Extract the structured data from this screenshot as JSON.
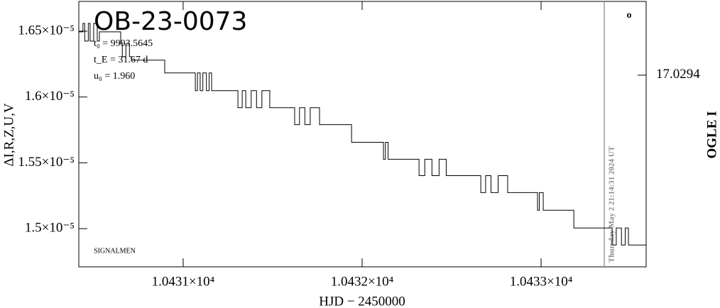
{
  "chart_data": {
    "type": "line",
    "title": "OB-23-0073",
    "annotations": [
      "t₀ = 9993.5645",
      "t_E = 31.67 d",
      "u₀ = 1.960",
      "SIGNALMEN",
      "Thursday May 2 21:14:31 2024 UT",
      "o"
    ],
    "xlabel": "HJD − 2450000",
    "ylabel": "ΔI,R,Z,U,V",
    "y2label": "OGLE I",
    "x": [
      10430.417,
      10430.44,
      10430.45,
      10430.47,
      10430.48,
      10430.5,
      10430.52,
      10430.532,
      10430.651,
      10430.66,
      10430.68,
      10430.7,
      10430.711,
      10430.897,
      10431.068,
      10431.08,
      10431.095,
      10431.11,
      10431.13,
      10431.145,
      10431.159,
      10431.306,
      10431.33,
      10431.35,
      10431.38,
      10431.41,
      10431.44,
      10431.484,
      10431.623,
      10431.65,
      10431.68,
      10431.71,
      10431.762,
      10431.941,
      10432.119,
      10432.13,
      10432.145,
      10432.159,
      10432.318,
      10432.35,
      10432.39,
      10432.43,
      10432.47,
      10432.496,
      10432.663,
      10432.69,
      10432.72,
      10432.76,
      10432.813,
      10432.98,
      10432.99,
      10433.012,
      10433.183,
      10433.397,
      10433.42,
      10433.449,
      10433.47,
      10433.488,
      10433.587
    ],
    "series": [
      {
        "name": "ΔI",
        "color": "#000000",
        "values": [
          1.6495e-05,
          1.6559e-05,
          1.6425e-05,
          1.6559e-05,
          1.6425e-05,
          1.6559e-05,
          1.6425e-05,
          1.6495e-05,
          1.6403e-05,
          1.6306e-05,
          1.6403e-05,
          1.6306e-05,
          1.628e-05,
          1.6183e-05,
          1.6048e-05,
          1.6183e-05,
          1.6048e-05,
          1.6183e-05,
          1.6048e-05,
          1.6183e-05,
          1.6048e-05,
          1.5919e-05,
          1.6048e-05,
          1.5919e-05,
          1.6048e-05,
          1.5919e-05,
          1.6048e-05,
          1.5919e-05,
          1.579e-05,
          1.5919e-05,
          1.579e-05,
          1.5919e-05,
          1.579e-05,
          1.5656e-05,
          1.5527e-05,
          1.5656e-05,
          1.5527e-05,
          1.5527e-05,
          1.5403e-05,
          1.5527e-05,
          1.5403e-05,
          1.5527e-05,
          1.5403e-05,
          1.5403e-05,
          1.5274e-05,
          1.5403e-05,
          1.5274e-05,
          1.5403e-05,
          1.5274e-05,
          1.514e-05,
          1.5274e-05,
          1.514e-05,
          1.5005e-05,
          1.4876e-05,
          1.5005e-05,
          1.4876e-05,
          1.5005e-05,
          1.4876e-05,
          1.4876e-05
        ]
      }
    ],
    "vline": 10433.353,
    "vline_color": "#999999",
    "xlim": [
      10430.417,
      10433.587
    ],
    "ylim": [
      1.471e-05,
      1.6726e-05
    ],
    "y2lim": [
      17.02966,
      17.0293
    ],
    "xticks": [
      {
        "value": 10431,
        "label": "1.0431×10⁴"
      },
      {
        "value": 10432,
        "label": "1.0432×10⁴"
      },
      {
        "value": 10433,
        "label": "1.0433×10⁴"
      }
    ],
    "yticks": [
      {
        "value": 1.65e-05,
        "label": "1.65×10⁻⁵"
      },
      {
        "value": 1.6e-05,
        "label": "1.6×10⁻⁵"
      },
      {
        "value": 1.55e-05,
        "label": "1.55×10⁻⁵"
      },
      {
        "value": 1.5e-05,
        "label": "1.5×10⁻⁵"
      }
    ],
    "y2ticks": [
      17.0294
    ]
  }
}
